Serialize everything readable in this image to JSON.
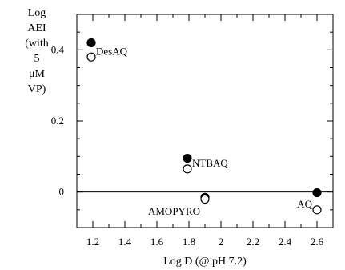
{
  "chart_data": {
    "type": "scatter",
    "title": "",
    "xlabel": "Log D (@ pH 7.2)",
    "ylabel_lines": [
      "Log",
      "AEI",
      "(with",
      "5",
      "μM",
      "VP)"
    ],
    "xlim": [
      1.1,
      2.7
    ],
    "ylim": [
      -0.1,
      0.5
    ],
    "x_ticks": [
      1.2,
      1.4,
      1.6,
      1.8,
      2,
      2.2,
      2.4,
      2.6
    ],
    "x_tick_labels": [
      "1.2",
      "1.4",
      "1.6",
      "1.8",
      "2",
      "2.2",
      "2.4",
      "2.6"
    ],
    "y_ticks": [
      0,
      0.2,
      0.4
    ],
    "y_tick_labels": [
      "0",
      "0.2",
      "0.4"
    ],
    "reference_line_y": 0,
    "grid": false,
    "series": [
      {
        "marker": "filled-circle",
        "points": [
          {
            "x": 1.19,
            "y": 0.42
          },
          {
            "x": 1.79,
            "y": 0.095
          },
          {
            "x": 1.9,
            "y": -0.015
          },
          {
            "x": 2.6,
            "y": -0.002
          }
        ]
      },
      {
        "marker": "open-circle",
        "points": [
          {
            "x": 1.19,
            "y": 0.38
          },
          {
            "x": 1.79,
            "y": 0.065
          },
          {
            "x": 1.9,
            "y": -0.02
          },
          {
            "x": 2.6,
            "y": -0.05
          }
        ]
      }
    ],
    "annotations": [
      {
        "text": "DesAQ",
        "x": 1.22,
        "y": 0.395,
        "anchor": "start"
      },
      {
        "text": "NTBAQ",
        "x": 1.82,
        "y": 0.08,
        "anchor": "start"
      },
      {
        "text": "AMOPYRO",
        "x": 1.87,
        "y": -0.055,
        "anchor": "end"
      },
      {
        "text": "AQ",
        "x": 2.57,
        "y": -0.035,
        "anchor": "end"
      }
    ]
  }
}
